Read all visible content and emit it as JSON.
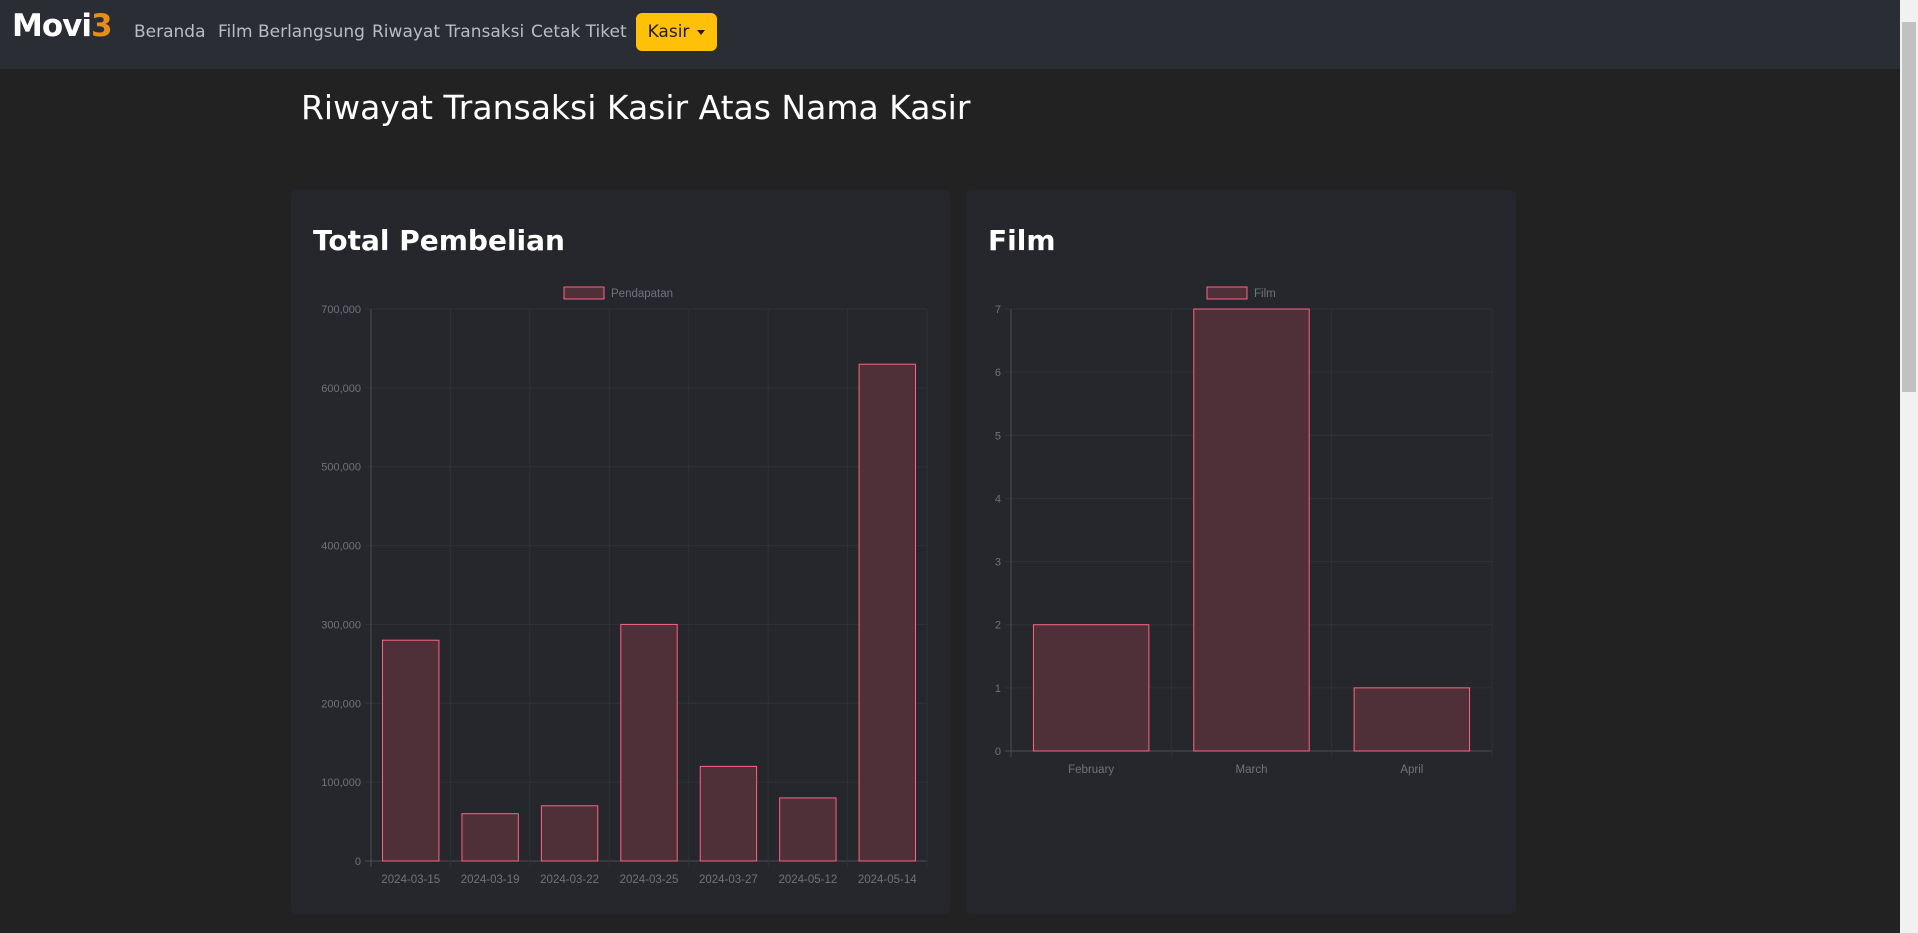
{
  "navbar": {
    "brand_main": "Movi",
    "brand_accent": "3",
    "links": [
      "Beranda",
      "Film Berlangsung",
      "Riwayat Transaksi",
      "Cetak Tiket"
    ],
    "user_menu_label": "Kasir"
  },
  "page": {
    "title": "Riwayat Transaksi Kasir Atas Nama Kasir"
  },
  "cards": {
    "purchases_title": "Total Pembelian",
    "film_title": "Film"
  },
  "colors": {
    "accent": "#ffc107",
    "brand_accent": "#e58e1a",
    "bar_fill": "#4f3039",
    "bar_border": "#ff6384"
  },
  "chart_data": [
    {
      "type": "bar",
      "categories": [
        "2024-03-15",
        "2024-03-19",
        "2024-03-22",
        "2024-03-25",
        "2024-03-27",
        "2024-05-12",
        "2024-05-14"
      ],
      "series": [
        {
          "name": "Pendapatan",
          "values": [
            280000,
            60000,
            70000,
            300000,
            120000,
            80000,
            630000
          ]
        }
      ],
      "ylim": [
        0,
        700000
      ],
      "yticks": [
        0,
        100000,
        200000,
        300000,
        400000,
        500000,
        600000,
        700000
      ],
      "ytick_labels": [
        "0",
        "100,000",
        "200,000",
        "300,000",
        "400,000",
        "500,000",
        "600,000",
        "700,000"
      ],
      "legend": "top-center",
      "grid": true
    },
    {
      "type": "bar",
      "categories": [
        "February",
        "March",
        "April"
      ],
      "series": [
        {
          "name": "Film",
          "values": [
            2,
            7,
            1
          ]
        }
      ],
      "ylim": [
        0,
        7
      ],
      "yticks": [
        0,
        1,
        2,
        3,
        4,
        5,
        6,
        7
      ],
      "ytick_labels": [
        "0",
        "1",
        "2",
        "3",
        "4",
        "5",
        "6",
        "7"
      ],
      "legend": "top-center",
      "grid": true
    }
  ]
}
